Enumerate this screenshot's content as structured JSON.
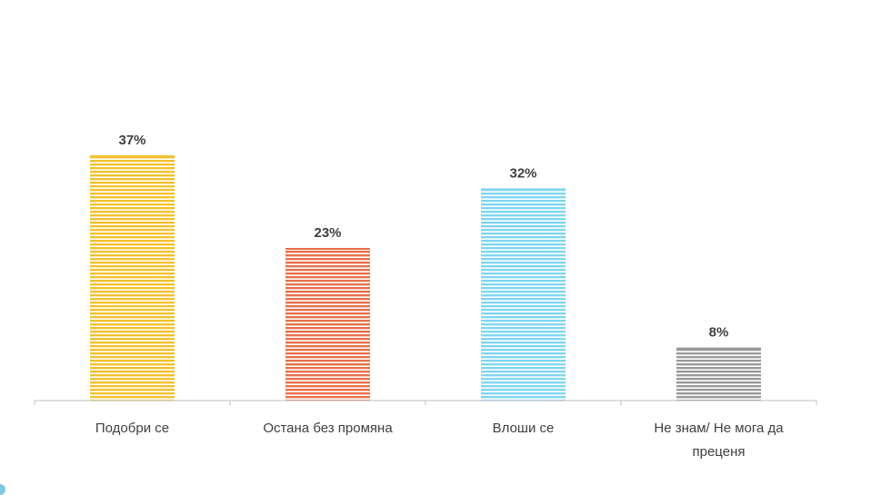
{
  "chart_data": {
    "type": "bar",
    "categories": [
      "Подобри се",
      "Остана без промяна",
      "Влоши се",
      "Не знам/ Не мога да преценя"
    ],
    "category_lines": [
      [
        "Подобри се"
      ],
      [
        "Остана без промяна"
      ],
      [
        "Влоши се"
      ],
      [
        "Не знам/ Не мога да",
        "преценя"
      ]
    ],
    "values": [
      37,
      23,
      32,
      8
    ],
    "value_labels": [
      "37%",
      "23%",
      "32%",
      "8%"
    ],
    "colors": [
      "#f2c12e",
      "#e8704a",
      "#7fd6ef",
      "#999999"
    ],
    "fill_style": "horizontal-stripes",
    "title": "",
    "xlabel": "",
    "ylabel": "",
    "ylim": [
      0,
      40
    ],
    "grid": false,
    "legend": "none"
  }
}
